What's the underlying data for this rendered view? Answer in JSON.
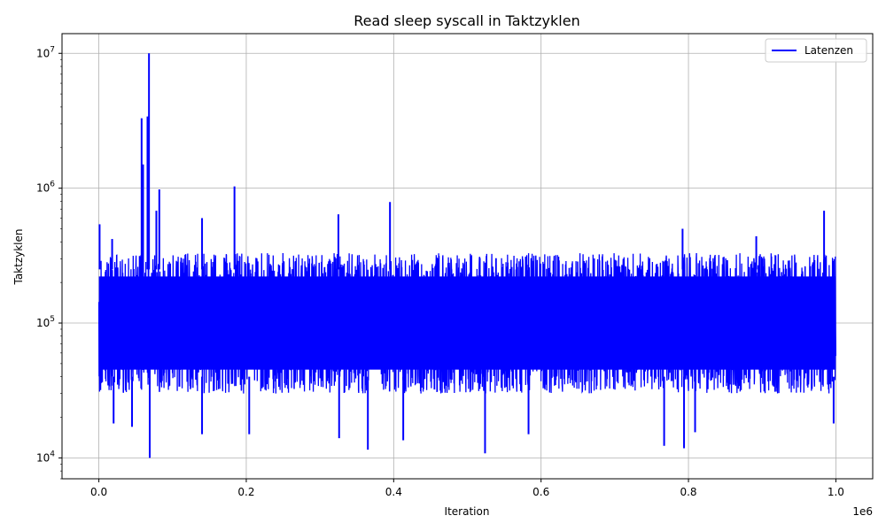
{
  "chart_data": {
    "type": "line",
    "title": "Read sleep syscall in Taktzyklen",
    "xlabel": "Iteration",
    "ylabel": "Taktzyklen",
    "x_scale_label": "1e6",
    "xlim": [
      -0.05,
      1.05
    ],
    "ylim": [
      7000,
      14000000
    ],
    "yscale": "log",
    "grid": true,
    "legend_position": "top-right",
    "x_ticks": [
      {
        "value": 0.0,
        "label": "0.0"
      },
      {
        "value": 0.2,
        "label": "0.2"
      },
      {
        "value": 0.4,
        "label": "0.4"
      },
      {
        "value": 0.6,
        "label": "0.6"
      },
      {
        "value": 0.8,
        "label": "0.8"
      },
      {
        "value": 1.0,
        "label": "1.0"
      }
    ],
    "y_ticks": [
      {
        "value": 10000,
        "base": "10",
        "exp": "4"
      },
      {
        "value": 100000,
        "base": "10",
        "exp": "5"
      },
      {
        "value": 1000000,
        "base": "10",
        "exp": "6"
      },
      {
        "value": 10000000,
        "base": "10",
        "exp": "7"
      }
    ],
    "series": [
      {
        "name": "Latenzen",
        "color": "#0000ff",
        "band_x_range": [
          0.0,
          1.0
        ],
        "band_low": 30000,
        "band_high": 330000,
        "typical_low": 40000,
        "typical_high": 250000,
        "spikes": [
          {
            "x": 0.001,
            "y": 540000
          },
          {
            "x": 0.018,
            "y": 420000
          },
          {
            "x": 0.058,
            "y": 3300000
          },
          {
            "x": 0.06,
            "y": 1500000
          },
          {
            "x": 0.066,
            "y": 3400000
          },
          {
            "x": 0.068,
            "y": 10000000
          },
          {
            "x": 0.069,
            "y": 10000
          },
          {
            "x": 0.078,
            "y": 680000
          },
          {
            "x": 0.082,
            "y": 980000
          },
          {
            "x": 0.14,
            "y": 600000
          },
          {
            "x": 0.184,
            "y": 1030000
          },
          {
            "x": 0.325,
            "y": 640000
          },
          {
            "x": 0.395,
            "y": 790000
          },
          {
            "x": 0.792,
            "y": 500000
          },
          {
            "x": 0.892,
            "y": 440000
          },
          {
            "x": 0.984,
            "y": 680000
          },
          {
            "x": 0.02,
            "y": 18000
          },
          {
            "x": 0.045,
            "y": 17000
          },
          {
            "x": 0.14,
            "y": 15000
          },
          {
            "x": 0.204,
            "y": 15000
          },
          {
            "x": 0.326,
            "y": 14000
          },
          {
            "x": 0.365,
            "y": 11500
          },
          {
            "x": 0.413,
            "y": 13500
          },
          {
            "x": 0.524,
            "y": 10800
          },
          {
            "x": 0.583,
            "y": 15000
          },
          {
            "x": 0.767,
            "y": 12300
          },
          {
            "x": 0.794,
            "y": 11800
          },
          {
            "x": 0.809,
            "y": 15500
          },
          {
            "x": 0.997,
            "y": 18000
          }
        ]
      }
    ]
  }
}
